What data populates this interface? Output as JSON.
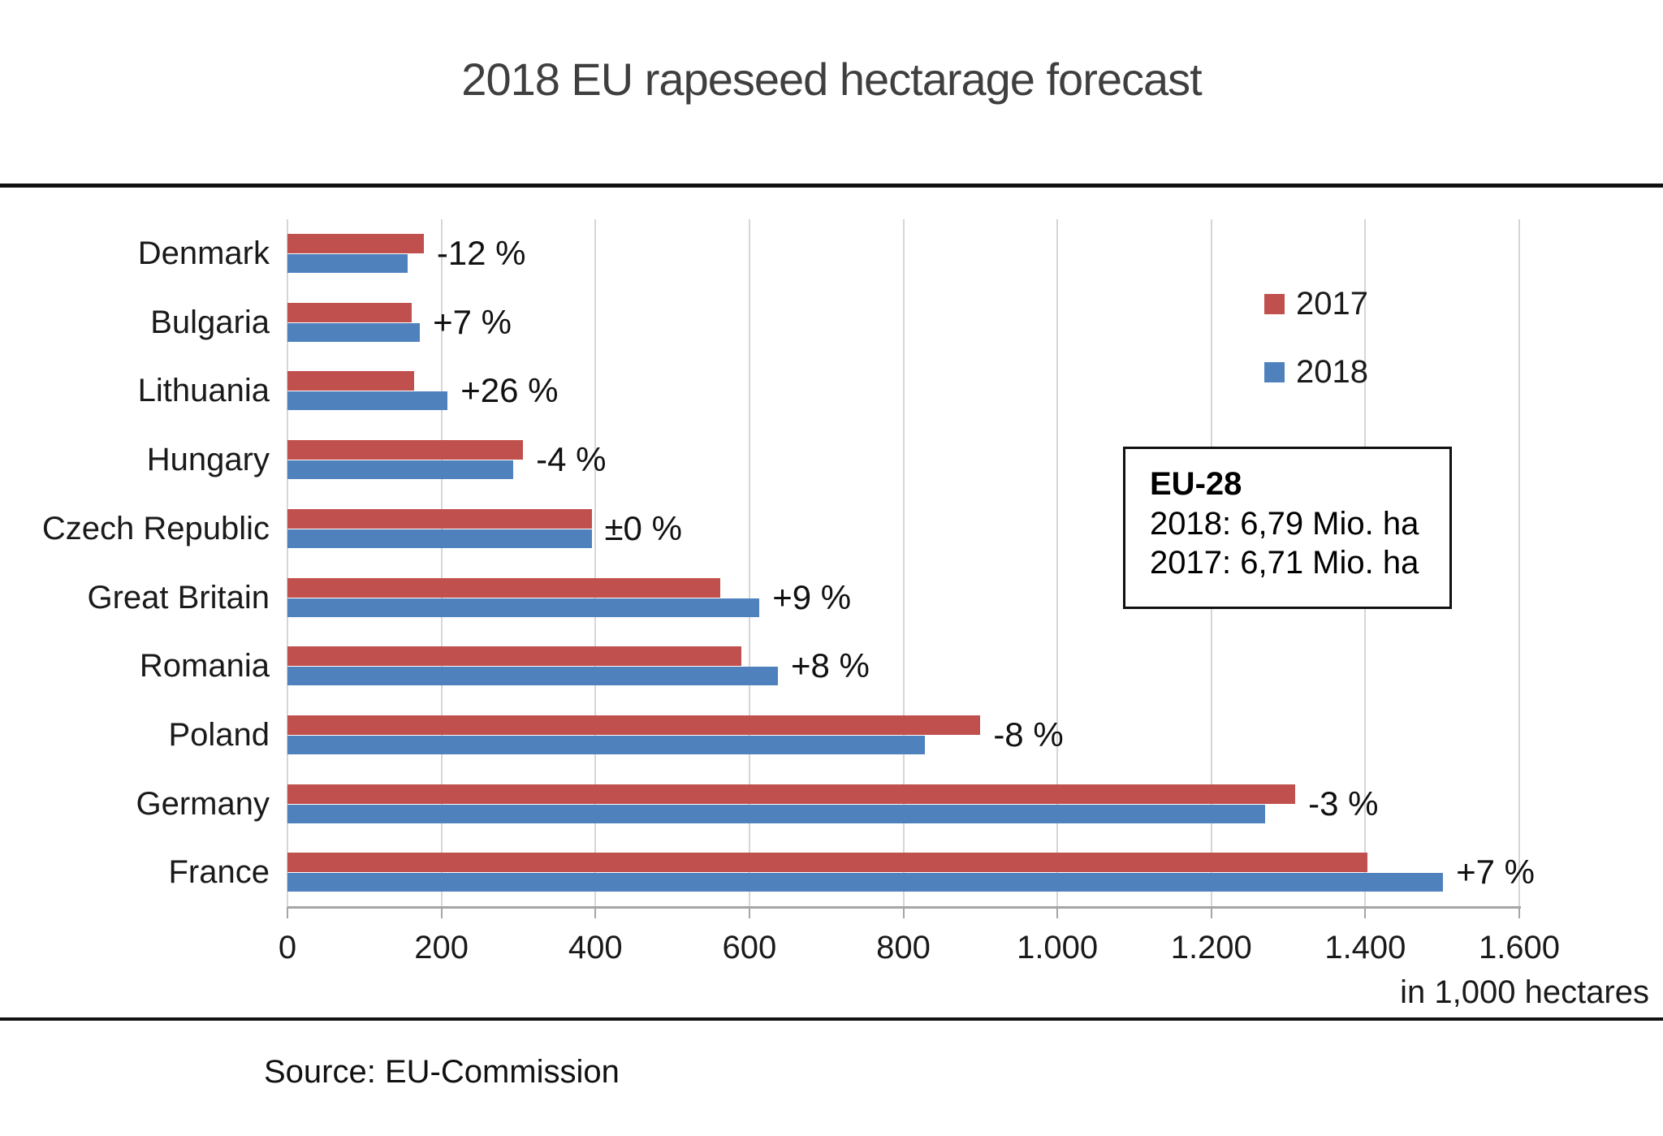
{
  "title": "2018 EU rapeseed hectarage forecast",
  "source": "Source: EU-Commission",
  "axis_unit": "in 1,000 hectares",
  "colors": {
    "series_2017": "#C0504D",
    "series_2018": "#4F81BD",
    "gridline": "#D6D6D6",
    "axis": "#A6A6A6"
  },
  "legend": [
    {
      "label": "2017",
      "color": "#C0504D"
    },
    {
      "label": "2018",
      "color": "#4F81BD"
    }
  ],
  "annotation": {
    "heading": "EU-28",
    "line1": "2018: 6,79 Mio. ha",
    "line2": "2017: 6,71 Mio. ha"
  },
  "chart_data": {
    "type": "bar",
    "orientation": "horizontal",
    "title": "2018 EU rapeseed hectarage forecast",
    "xlabel": "in 1,000 hectares",
    "xlim": [
      0,
      1600
    ],
    "x_ticks": [
      "0",
      "200",
      "400",
      "600",
      "800",
      "1.000",
      "1.200",
      "1.400",
      "1.600"
    ],
    "x_tick_values": [
      0,
      200,
      400,
      600,
      800,
      1000,
      1200,
      1400,
      1600
    ],
    "grid": true,
    "legend_position": "top-right",
    "categories": [
      "Denmark",
      "Bulgaria",
      "Lithuania",
      "Hungary",
      "Czech Republic",
      "Great Britain",
      "Romania",
      "Poland",
      "Germany",
      "France"
    ],
    "series": [
      {
        "name": "2017",
        "color": "#C0504D",
        "values": [
          177,
          161,
          165,
          306,
          395,
          562,
          590,
          900,
          1309,
          1403
        ]
      },
      {
        "name": "2018",
        "color": "#4F81BD",
        "values": [
          156,
          172,
          208,
          293,
          395,
          613,
          637,
          828,
          1270,
          1501
        ]
      }
    ],
    "bar_labels": [
      "-12 %",
      "+7 %",
      "+26 %",
      "-4 %",
      "±0 %",
      "+9 %",
      "+8 %",
      "-8 %",
      "-3 %",
      "+7 %"
    ]
  }
}
